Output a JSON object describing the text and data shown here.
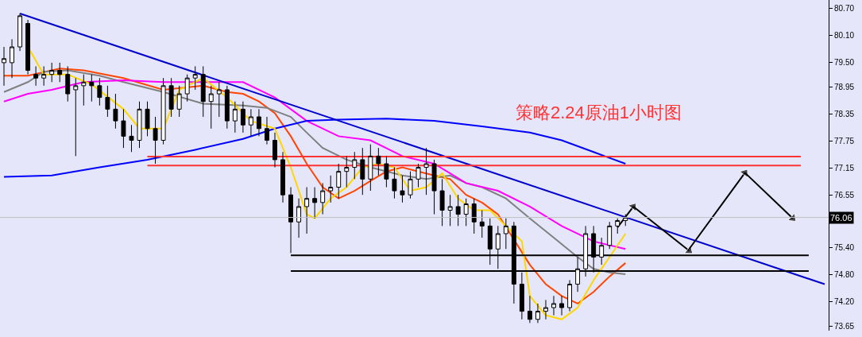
{
  "chart_data": {
    "type": "candlestick",
    "categories": [
      null,
      null,
      null,
      null,
      null,
      null,
      null,
      null,
      null,
      null,
      null,
      null,
      null,
      null,
      null,
      null,
      null,
      null,
      null,
      null,
      null,
      null,
      null,
      null,
      null,
      null,
      null,
      null,
      null,
      null,
      null,
      null,
      null,
      null,
      null,
      null,
      null,
      null,
      null,
      null,
      null,
      null,
      null,
      null,
      null,
      null,
      null,
      null,
      null,
      null,
      null,
      null,
      null,
      null,
      null,
      null,
      null,
      null,
      null,
      null,
      null,
      null,
      null,
      null,
      null,
      null,
      null,
      null,
      null,
      null,
      null,
      null,
      null,
      null,
      null,
      null,
      null,
      null,
      null,
      null,
      null,
      null,
      null,
      null,
      null,
      null,
      null,
      null,
      null,
      null,
      null,
      null,
      null,
      null,
      null,
      null,
      null,
      null,
      null,
      null,
      null,
      null,
      null,
      null
    ],
    "ohlc": [
      [
        79.49,
        79.84,
        78.98,
        79.58
      ],
      [
        79.49,
        80.01,
        79.15,
        79.84
      ],
      [
        79.84,
        80.58,
        79.75,
        80.53
      ],
      [
        80.36,
        80.44,
        79.23,
        79.32
      ],
      [
        79.23,
        79.41,
        78.98,
        79.15
      ],
      [
        79.15,
        79.41,
        78.98,
        79.23
      ],
      [
        79.23,
        79.49,
        79.06,
        79.32
      ],
      [
        79.32,
        79.49,
        79.06,
        79.23
      ],
      [
        79.23,
        79.41,
        78.63,
        78.8
      ],
      [
        78.89,
        79.15,
        77.42,
        78.98
      ],
      [
        78.98,
        79.23,
        78.54,
        79.06
      ],
      [
        79.06,
        79.23,
        78.63,
        78.98
      ],
      [
        78.98,
        79.15,
        78.54,
        78.72
      ],
      [
        78.72,
        78.98,
        78.29,
        78.46
      ],
      [
        78.46,
        78.8,
        78.03,
        78.2
      ],
      [
        78.2,
        78.46,
        77.6,
        77.86
      ],
      [
        77.86,
        78.11,
        77.51,
        77.77
      ],
      [
        77.77,
        78.63,
        77.6,
        78.46
      ],
      [
        78.46,
        78.63,
        77.86,
        78.03
      ],
      [
        78.03,
        78.29,
        77.25,
        77.77
      ],
      [
        77.77,
        79.15,
        77.68,
        78.98
      ],
      [
        78.98,
        79.15,
        78.29,
        78.46
      ],
      [
        78.46,
        78.98,
        78.29,
        78.8
      ],
      [
        78.8,
        79.23,
        78.63,
        79.15
      ],
      [
        79.15,
        79.41,
        78.89,
        79.23
      ],
      [
        79.23,
        79.41,
        78.29,
        78.63
      ],
      [
        78.63,
        78.98,
        78.03,
        78.8
      ],
      [
        78.8,
        79.06,
        78.29,
        78.89
      ],
      [
        78.89,
        78.98,
        78.03,
        78.2
      ],
      [
        78.2,
        78.63,
        77.94,
        78.46
      ],
      [
        78.46,
        78.63,
        77.94,
        78.11
      ],
      [
        78.11,
        78.46,
        77.86,
        78.29
      ],
      [
        78.29,
        78.46,
        77.86,
        78.03
      ],
      [
        78.03,
        78.29,
        77.68,
        77.77
      ],
      [
        77.77,
        77.94,
        77.17,
        77.34
      ],
      [
        77.34,
        77.51,
        76.39,
        76.56
      ],
      [
        76.56,
        76.73,
        75.27,
        75.96
      ],
      [
        75.96,
        76.48,
        75.61,
        76.3
      ],
      [
        76.3,
        76.73,
        75.7,
        76.48
      ],
      [
        76.48,
        76.73,
        76.04,
        76.39
      ],
      [
        76.39,
        76.82,
        76.13,
        76.65
      ],
      [
        76.65,
        76.99,
        76.39,
        76.73
      ],
      [
        76.73,
        77.25,
        76.48,
        77.08
      ],
      [
        77.08,
        77.42,
        76.73,
        77.17
      ],
      [
        77.17,
        77.51,
        76.91,
        77.34
      ],
      [
        77.34,
        77.6,
        76.56,
        76.91
      ],
      [
        76.91,
        77.68,
        76.65,
        77.42
      ],
      [
        77.42,
        77.6,
        76.99,
        77.25
      ],
      [
        77.25,
        77.42,
        76.73,
        76.91
      ],
      [
        76.91,
        77.17,
        76.48,
        76.65
      ],
      [
        76.65,
        76.99,
        76.39,
        76.56
      ],
      [
        76.56,
        77.08,
        76.48,
        76.91
      ],
      [
        76.91,
        77.25,
        76.73,
        77.17
      ],
      [
        77.17,
        77.6,
        76.56,
        77.25
      ],
      [
        77.25,
        77.34,
        76.13,
        76.65
      ],
      [
        76.65,
        76.91,
        75.87,
        76.22
      ],
      [
        76.22,
        76.56,
        75.87,
        76.3
      ],
      [
        76.3,
        76.56,
        75.87,
        76.13
      ],
      [
        76.13,
        76.48,
        75.87,
        76.36
      ],
      [
        76.36,
        76.48,
        75.7,
        75.96
      ],
      [
        75.96,
        76.22,
        75.61,
        75.87
      ],
      [
        75.87,
        76.04,
        75.01,
        75.36
      ],
      [
        75.36,
        75.87,
        74.92,
        75.7
      ],
      [
        75.7,
        76.04,
        75.36,
        75.87
      ],
      [
        75.87,
        75.96,
        74.15,
        74.58
      ],
      [
        74.58,
        74.84,
        73.8,
        73.98
      ],
      [
        73.98,
        74.32,
        73.72,
        73.8
      ],
      [
        73.8,
        74.15,
        73.72,
        73.98
      ],
      [
        73.98,
        74.23,
        73.8,
        74.06
      ],
      [
        74.06,
        74.32,
        73.89,
        74.15
      ],
      [
        74.15,
        74.32,
        73.89,
        74.06
      ],
      [
        74.06,
        74.67,
        73.98,
        74.58
      ],
      [
        74.58,
        75.18,
        74.41,
        74.92
      ],
      [
        74.92,
        75.87,
        74.75,
        75.7
      ],
      [
        75.7,
        75.87,
        74.84,
        75.18
      ],
      [
        75.18,
        75.61,
        75.01,
        75.44
      ],
      [
        75.44,
        75.96,
        75.36,
        75.87
      ],
      [
        75.87,
        76.04,
        75.7,
        75.99
      ],
      [
        75.99,
        76.13,
        75.87,
        76.06
      ],
      null,
      null,
      null,
      null,
      null,
      null,
      null,
      null,
      null,
      null,
      null,
      null,
      null,
      null,
      null,
      null,
      null,
      null,
      null,
      null,
      null,
      null,
      null,
      null,
      null
    ],
    "series": [
      {
        "type": "line",
        "color": "#ff4500",
        "values": [
          79.2,
          null,
          null,
          79.2,
          null,
          null,
          null,
          79.36,
          null,
          null,
          79.32,
          null,
          null,
          null,
          null,
          79.15,
          null,
          null,
          null,
          null,
          78.89,
          null,
          null,
          null,
          null,
          78.98,
          null,
          null,
          78.84,
          null,
          78.8,
          null,
          78.63,
          null,
          78.37,
          null,
          77.86,
          null,
          77.25,
          null,
          76.73,
          null,
          76.48,
          null,
          76.65,
          null,
          76.87,
          null,
          77.08,
          null,
          77.17,
          null,
          77.08,
          null,
          76.99,
          null,
          76.91,
          null,
          76.56,
          null,
          76.39,
          null,
          76.13,
          null,
          null,
          null,
          75.01,
          null,
          74.58,
          null,
          74.32,
          null,
          74.15,
          null,
          74.41,
          null,
          74.75,
          null,
          75.05,
          null,
          null,
          null,
          null,
          null,
          null,
          null,
          null,
          null,
          null,
          null,
          null,
          null,
          null,
          null,
          null,
          null,
          null,
          null,
          null,
          null,
          null,
          null,
          null,
          null
        ]
      },
      {
        "type": "line",
        "color": "#808080",
        "values": [
          78.84,
          null,
          null,
          79.06,
          null,
          79.29,
          null,
          null,
          79.32,
          null,
          null,
          null,
          79.2,
          null,
          null,
          79.06,
          null,
          null,
          null,
          null,
          78.84,
          null,
          null,
          null,
          null,
          78.58,
          null,
          null,
          null,
          null,
          78.54,
          null,
          null,
          78.49,
          null,
          null,
          78.29,
          null,
          77.94,
          null,
          77.6,
          null,
          null,
          77.34,
          null,
          null,
          77.17,
          null,
          null,
          null,
          76.99,
          null,
          null,
          76.91,
          null,
          null,
          76.99,
          null,
          76.82,
          null,
          76.73,
          null,
          null,
          76.48,
          null,
          null,
          76.04,
          null,
          null,
          75.61,
          null,
          null,
          75.18,
          null,
          74.92,
          null,
          74.84,
          null,
          74.8,
          null,
          null,
          null,
          null,
          null,
          null,
          null,
          null,
          null,
          null,
          null,
          null,
          null,
          null,
          null,
          null,
          null,
          null,
          null,
          null,
          null,
          null,
          null,
          null,
          null
        ]
      },
      {
        "type": "line",
        "color": "#ff00ff",
        "values": [
          78.63,
          null,
          null,
          78.8,
          null,
          null,
          78.89,
          null,
          null,
          null,
          79.06,
          null,
          null,
          null,
          null,
          79.1,
          null,
          null,
          null,
          null,
          79.06,
          null,
          null,
          null,
          null,
          null,
          null,
          null,
          null,
          null,
          79.06,
          null,
          null,
          null,
          78.72,
          null,
          null,
          null,
          78.2,
          null,
          null,
          null,
          77.86,
          null,
          null,
          null,
          77.77,
          null,
          null,
          null,
          77.42,
          null,
          null,
          null,
          77.25,
          null,
          null,
          null,
          76.82,
          null,
          null,
          null,
          76.65,
          null,
          null,
          null,
          76.3,
          null,
          null,
          null,
          75.87,
          null,
          null,
          null,
          75.53,
          null,
          null,
          null,
          75.36,
          null,
          null,
          null,
          null,
          null,
          null,
          null,
          null,
          null,
          null,
          null,
          null,
          null,
          null,
          null,
          null,
          null,
          null,
          null,
          null,
          null,
          null,
          null,
          null,
          null
        ]
      },
      {
        "type": "line",
        "color": "#0000ff",
        "values": [
          76.96,
          null,
          null,
          null,
          null,
          null,
          76.99,
          null,
          null,
          null,
          null,
          null,
          77.17,
          null,
          null,
          null,
          null,
          null,
          77.34,
          null,
          null,
          null,
          null,
          null,
          77.56,
          null,
          null,
          null,
          null,
          null,
          77.8,
          null,
          null,
          null,
          78.03,
          null,
          null,
          null,
          78.2,
          null,
          null,
          null,
          78.23,
          null,
          null,
          null,
          null,
          null,
          78.25,
          null,
          null,
          null,
          null,
          null,
          78.2,
          null,
          null,
          null,
          null,
          null,
          78.08,
          null,
          null,
          null,
          null,
          null,
          77.94,
          null,
          null,
          null,
          77.77,
          null,
          null,
          null,
          77.51,
          null,
          null,
          null,
          77.25,
          null,
          null,
          null,
          null,
          null,
          null,
          null,
          null,
          null,
          null,
          null,
          null,
          null,
          null,
          null,
          null,
          null,
          null,
          null,
          null,
          null,
          null,
          null,
          null,
          null
        ]
      },
      {
        "type": "line",
        "color": "#ffd700",
        "values": [
          null,
          null,
          null,
          79.84,
          null,
          79.23,
          null,
          null,
          79.23,
          null,
          null,
          79.01,
          null,
          null,
          null,
          78.46,
          null,
          78.03,
          null,
          null,
          78.03,
          null,
          78.89,
          null,
          null,
          79.15,
          null,
          null,
          78.72,
          null,
          null,
          78.2,
          null,
          null,
          78.03,
          null,
          77.17,
          null,
          76.13,
          76.04,
          null,
          76.48,
          null,
          76.73,
          null,
          77.17,
          null,
          77.25,
          null,
          77.17,
          null,
          76.65,
          null,
          76.73,
          null,
          77.04,
          null,
          76.48,
          null,
          76.22,
          null,
          76.22,
          null,
          75.87,
          null,
          75.53,
          74.32,
          null,
          73.89,
          null,
          73.8,
          null,
          74.06,
          null,
          74.67,
          null,
          75.18,
          null,
          75.7,
          null,
          null,
          null,
          null,
          null,
          null,
          null,
          null,
          null,
          null,
          null,
          null,
          null,
          null,
          null,
          null,
          null,
          null,
          null,
          null,
          null,
          null,
          null,
          null,
          null
        ]
      },
      {
        "type": "line",
        "color": "#0000cc",
        "values": [
          null,
          null,
          80.58,
          null,
          null,
          null,
          null,
          null,
          null,
          null,
          null,
          null,
          null,
          null,
          null,
          null,
          null,
          null,
          null,
          null,
          null,
          null,
          null,
          null,
          null,
          null,
          null,
          null,
          null,
          null,
          null,
          null,
          null,
          null,
          null,
          null,
          null,
          null,
          null,
          null,
          null,
          null,
          null,
          null,
          null,
          null,
          null,
          null,
          null,
          null,
          null,
          null,
          null,
          null,
          null,
          null,
          null,
          null,
          null,
          null,
          null,
          null,
          null,
          null,
          null,
          null,
          null,
          null,
          null,
          null,
          null,
          null,
          null,
          null,
          null,
          null,
          null,
          null,
          null,
          null,
          null,
          null,
          null,
          null,
          null,
          null,
          null,
          null,
          null,
          null,
          null,
          null,
          null,
          null,
          null,
          null,
          null,
          null,
          null,
          null,
          null,
          null,
          null,
          74.58
        ]
      },
      {
        "type": "line",
        "color": "#ff3333",
        "values": [
          null,
          null,
          null,
          null,
          null,
          null,
          null,
          null,
          null,
          null,
          null,
          null,
          null,
          null,
          null,
          null,
          null,
          null,
          77.41,
          null,
          null,
          null,
          null,
          null,
          null,
          null,
          null,
          null,
          null,
          null,
          null,
          null,
          null,
          null,
          null,
          null,
          null,
          null,
          null,
          null,
          null,
          null,
          null,
          null,
          null,
          null,
          null,
          null,
          null,
          null,
          null,
          null,
          null,
          null,
          null,
          null,
          null,
          null,
          null,
          null,
          null,
          null,
          null,
          null,
          null,
          null,
          null,
          null,
          null,
          null,
          null,
          null,
          null,
          null,
          null,
          null,
          null,
          null,
          null,
          null,
          null,
          null,
          null,
          null,
          null,
          null,
          null,
          null,
          null,
          null,
          null,
          null,
          null,
          null,
          null,
          null,
          null,
          null,
          null,
          null,
          77.41,
          null,
          null,
          null
        ]
      },
      {
        "type": "line",
        "color": "#ff3333",
        "values": [
          null,
          null,
          null,
          null,
          null,
          null,
          null,
          null,
          null,
          null,
          null,
          null,
          null,
          null,
          null,
          null,
          null,
          null,
          77.21,
          null,
          null,
          null,
          null,
          null,
          null,
          null,
          null,
          null,
          null,
          null,
          null,
          null,
          null,
          null,
          null,
          null,
          null,
          null,
          null,
          null,
          null,
          null,
          null,
          null,
          null,
          null,
          null,
          null,
          null,
          null,
          null,
          null,
          null,
          null,
          null,
          null,
          null,
          null,
          null,
          null,
          null,
          null,
          null,
          null,
          null,
          null,
          null,
          null,
          null,
          null,
          null,
          null,
          null,
          null,
          null,
          null,
          null,
          null,
          null,
          null,
          null,
          null,
          null,
          null,
          null,
          null,
          null,
          null,
          null,
          null,
          null,
          null,
          null,
          null,
          null,
          null,
          null,
          null,
          null,
          null,
          77.21,
          null,
          null,
          null
        ]
      },
      {
        "type": "line",
        "color": "#000000",
        "values": [
          null,
          null,
          null,
          null,
          null,
          null,
          null,
          null,
          null,
          null,
          null,
          null,
          null,
          null,
          null,
          null,
          null,
          null,
          null,
          null,
          null,
          null,
          null,
          null,
          null,
          null,
          null,
          null,
          null,
          null,
          null,
          null,
          null,
          null,
          null,
          null,
          75.22,
          null,
          null,
          null,
          null,
          null,
          null,
          null,
          null,
          null,
          null,
          null,
          null,
          null,
          null,
          null,
          null,
          null,
          null,
          null,
          null,
          null,
          null,
          null,
          null,
          null,
          null,
          null,
          null,
          null,
          null,
          null,
          null,
          null,
          null,
          null,
          null,
          null,
          null,
          null,
          null,
          null,
          null,
          null,
          null,
          null,
          null,
          null,
          null,
          null,
          null,
          null,
          null,
          null,
          null,
          null,
          null,
          null,
          null,
          null,
          null,
          null,
          null,
          null,
          null,
          75.22,
          null,
          null
        ]
      },
      {
        "type": "line",
        "color": "#000000",
        "values": [
          null,
          null,
          null,
          null,
          null,
          null,
          null,
          null,
          null,
          null,
          null,
          null,
          null,
          null,
          null,
          null,
          null,
          null,
          null,
          null,
          null,
          null,
          null,
          null,
          null,
          null,
          null,
          null,
          null,
          null,
          null,
          null,
          null,
          null,
          null,
          null,
          74.87,
          null,
          null,
          null,
          null,
          null,
          null,
          null,
          null,
          null,
          null,
          null,
          null,
          null,
          null,
          null,
          null,
          null,
          null,
          null,
          null,
          null,
          null,
          null,
          null,
          null,
          null,
          null,
          null,
          null,
          null,
          null,
          null,
          null,
          null,
          null,
          null,
          null,
          null,
          null,
          null,
          null,
          null,
          null,
          null,
          null,
          null,
          null,
          null,
          null,
          null,
          null,
          null,
          null,
          null,
          null,
          null,
          null,
          null,
          null,
          null,
          null,
          null,
          null,
          null,
          74.87,
          null,
          null
        ]
      },
      {
        "type": "line",
        "color": "#000000",
        "marker": "triangle",
        "values": [
          null,
          null,
          null,
          null,
          null,
          null,
          null,
          null,
          null,
          null,
          null,
          null,
          null,
          null,
          null,
          null,
          null,
          null,
          null,
          null,
          null,
          null,
          null,
          null,
          null,
          null,
          null,
          null,
          null,
          null,
          null,
          null,
          null,
          null,
          null,
          null,
          null,
          null,
          null,
          null,
          null,
          null,
          null,
          null,
          null,
          null,
          null,
          null,
          null,
          null,
          null,
          null,
          null,
          null,
          null,
          null,
          null,
          null,
          null,
          null,
          null,
          null,
          null,
          null,
          null,
          null,
          null,
          null,
          null,
          null,
          null,
          null,
          null,
          null,
          null,
          null,
          null,
          75.84,
          null,
          76.3,
          null,
          null,
          null,
          null,
          null,
          null,
          null,
          null,
          null,
          null,
          null,
          null,
          null,
          null,
          null,
          null,
          null,
          null,
          null,
          null,
          null,
          null,
          null,
          null
        ]
      },
      {
        "type": "line",
        "color": "#000000",
        "marker": "triangle",
        "values": [
          null,
          null,
          null,
          null,
          null,
          null,
          null,
          null,
          null,
          null,
          null,
          null,
          null,
          null,
          null,
          null,
          null,
          null,
          null,
          null,
          null,
          null,
          null,
          null,
          null,
          null,
          null,
          null,
          null,
          null,
          null,
          null,
          null,
          null,
          null,
          null,
          null,
          null,
          null,
          null,
          null,
          null,
          null,
          null,
          null,
          null,
          null,
          null,
          null,
          null,
          null,
          null,
          null,
          null,
          null,
          null,
          null,
          null,
          null,
          null,
          null,
          null,
          null,
          null,
          null,
          null,
          null,
          null,
          null,
          null,
          null,
          null,
          null,
          null,
          null,
          null,
          null,
          null,
          null,
          76.3,
          null,
          null,
          null,
          null,
          null,
          null,
          75.32,
          null,
          null,
          null,
          null,
          null,
          null,
          null,
          null,
          null,
          null,
          null,
          null,
          null,
          null,
          null,
          null,
          null
        ]
      },
      {
        "type": "line",
        "color": "#000000",
        "marker": "triangle",
        "values": [
          null,
          null,
          null,
          null,
          null,
          null,
          null,
          null,
          null,
          null,
          null,
          null,
          null,
          null,
          null,
          null,
          null,
          null,
          null,
          null,
          null,
          null,
          null,
          null,
          null,
          null,
          null,
          null,
          null,
          null,
          null,
          null,
          null,
          null,
          null,
          null,
          null,
          null,
          null,
          null,
          null,
          null,
          null,
          null,
          null,
          null,
          null,
          null,
          null,
          null,
          null,
          null,
          null,
          null,
          null,
          null,
          null,
          null,
          null,
          null,
          null,
          null,
          null,
          null,
          null,
          null,
          null,
          null,
          null,
          null,
          null,
          null,
          null,
          null,
          null,
          null,
          null,
          null,
          null,
          null,
          null,
          null,
          null,
          null,
          null,
          null,
          75.36,
          null,
          null,
          null,
          null,
          null,
          null,
          77.05,
          null,
          null,
          null,
          null,
          null,
          null,
          null,
          null,
          null,
          null
        ]
      },
      {
        "type": "line",
        "color": "#000000",
        "marker": "triangle",
        "values": [
          null,
          null,
          null,
          null,
          null,
          null,
          null,
          null,
          null,
          null,
          null,
          null,
          null,
          null,
          null,
          null,
          null,
          null,
          null,
          null,
          null,
          null,
          null,
          null,
          null,
          null,
          null,
          null,
          null,
          null,
          null,
          null,
          null,
          null,
          null,
          null,
          null,
          null,
          null,
          null,
          null,
          null,
          null,
          null,
          null,
          null,
          null,
          null,
          null,
          null,
          null,
          null,
          null,
          null,
          null,
          null,
          null,
          null,
          null,
          null,
          null,
          null,
          null,
          null,
          null,
          null,
          null,
          null,
          null,
          null,
          null,
          null,
          null,
          null,
          null,
          null,
          null,
          null,
          null,
          null,
          null,
          null,
          null,
          null,
          null,
          null,
          null,
          null,
          null,
          null,
          null,
          null,
          null,
          77.05,
          null,
          null,
          null,
          null,
          null,
          76.04,
          null,
          null,
          null,
          null
        ]
      }
    ],
    "ylim": [
      73.55,
      80.88
    ],
    "yticks": [
      {
        "value": 80.7,
        "label": "80.70"
      },
      {
        "value": 80.1,
        "label": "80.10"
      },
      {
        "value": 79.5,
        "label": "79.50"
      },
      78.95,
      78.35,
      77.75,
      77.15,
      76.55,
      {
        "value": 75.4,
        "label": "75.40"
      },
      {
        "value": 74.8,
        "label": "74.80"
      },
      {
        "value": 74.2,
        "label": "74.20"
      },
      73.65
    ],
    "tick_labels": "y",
    "grid": false,
    "ref_lines": [
      {
        "axis": "y",
        "value": 76.06,
        "label": "76.06",
        "color": "#c0c0c0"
      }
    ],
    "annotations": [
      "策略2.24原油1小时图"
    ]
  }
}
